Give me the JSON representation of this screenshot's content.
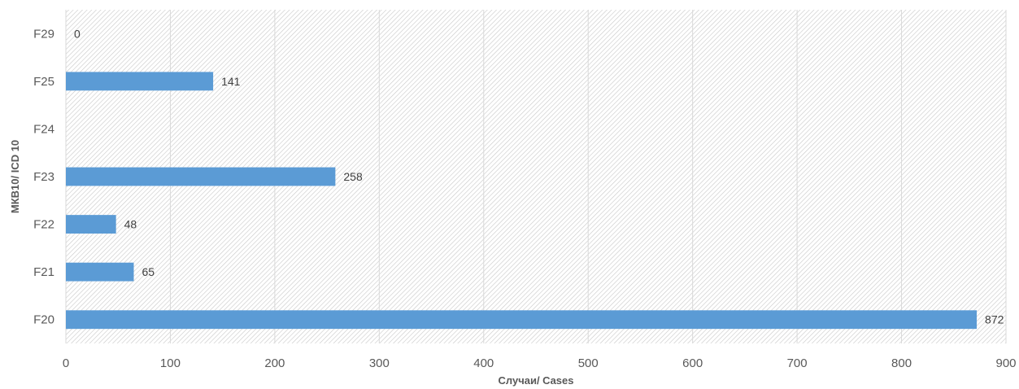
{
  "chart_data": {
    "type": "bar",
    "orientation": "horizontal",
    "categories": [
      "F20",
      "F21",
      "F22",
      "F23",
      "F24",
      "F25",
      "F29"
    ],
    "values": [
      872,
      65,
      48,
      258,
      null,
      141,
      0
    ],
    "data_labels": [
      "872",
      "65",
      "48",
      "258",
      "",
      "141",
      "0"
    ],
    "xlabel": "Случаи/ Cases",
    "ylabel": "МКВ10/ ICD 10",
    "xlim": [
      0,
      900
    ],
    "x_ticks": [
      "0",
      "100",
      "200",
      "300",
      "400",
      "500",
      "600",
      "700",
      "800",
      "900"
    ],
    "grid": true,
    "legend": "none",
    "bar_color": "#5B9BD5",
    "plot_background": "hatched light gray",
    "label_color": "#595959"
  }
}
